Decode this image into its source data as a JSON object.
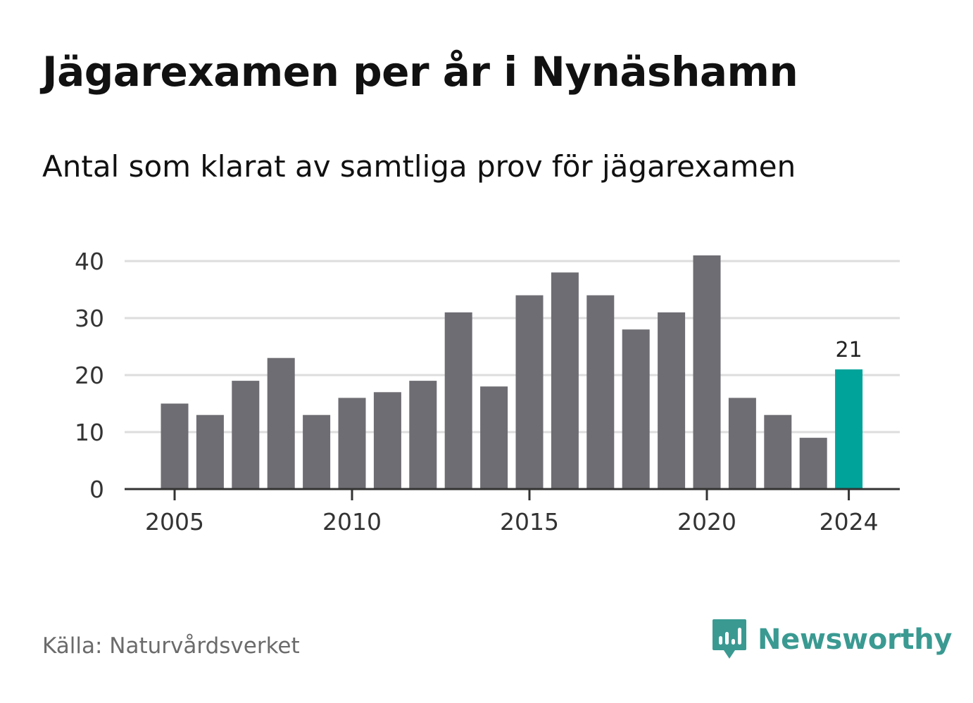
{
  "title": "Jägarexamen per år i Nynäshamn",
  "subtitle": "Antal som klarat av samtliga prov för jägarexamen",
  "source": "Källa: Naturvårdsverket",
  "brand": {
    "name": "Newsworthy",
    "logo_icon": "bar-chart-speech-bubble-icon",
    "color": "#3a9a92"
  },
  "colors": {
    "bar": "#6e6d73",
    "highlight": "#00a39a",
    "grid": "#dddddd",
    "axis": "#333333",
    "text": "#333333"
  },
  "chart_data": {
    "type": "bar",
    "x": [
      2005,
      2006,
      2007,
      2008,
      2009,
      2010,
      2011,
      2012,
      2013,
      2014,
      2015,
      2016,
      2017,
      2018,
      2019,
      2020,
      2021,
      2022,
      2023,
      2024
    ],
    "values": [
      15,
      13,
      19,
      23,
      13,
      16,
      17,
      19,
      31,
      18,
      34,
      38,
      34,
      28,
      31,
      41,
      16,
      13,
      9,
      21
    ],
    "highlight_index": 19,
    "highlight_label": "21",
    "ylim": [
      0,
      41
    ],
    "y_ticks": [
      0,
      10,
      20,
      30,
      40
    ],
    "x_ticks": [
      2005,
      2010,
      2015,
      2020,
      2024
    ],
    "grid": true,
    "title": "Jägarexamen per år i Nynäshamn",
    "xlabel": "",
    "ylabel": ""
  }
}
